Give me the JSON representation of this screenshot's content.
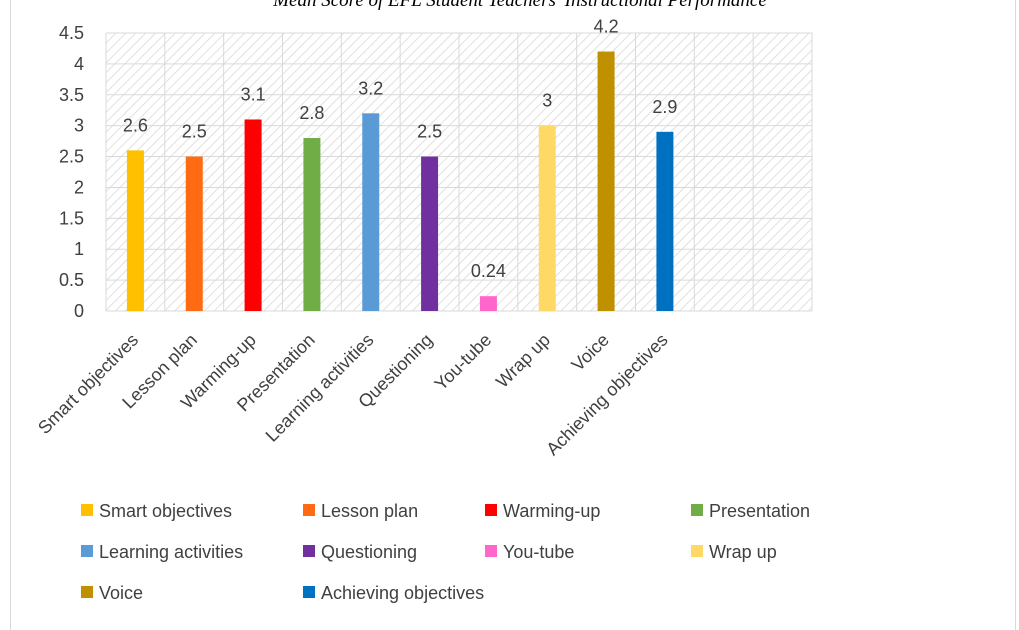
{
  "chart_data": {
    "type": "bar",
    "title": "Mean Score of EFL Student Teachers' Instructional Performance",
    "xlabel": "",
    "ylabel": "",
    "ylim": [
      0,
      4.5
    ],
    "yticks": [
      "0",
      "0.5",
      "1",
      "1.5",
      "2",
      "2.5",
      "3",
      "3.5",
      "4",
      "4.5"
    ],
    "grid": true,
    "plot_background": "diagonal hatch",
    "legend_position": "bottom",
    "categories": [
      "Smart objectives",
      "Lesson plan",
      "Warming-up",
      "Presentation",
      "Learning activities",
      "Questioning",
      "You-tube",
      "Wrap up",
      "Voice",
      "Achieving objectives"
    ],
    "values": [
      2.6,
      2.5,
      3.1,
      2.8,
      3.2,
      2.5,
      0.24,
      3,
      4.2,
      2.9
    ],
    "data_labels": [
      "2.6",
      "2.5",
      "3.1",
      "2.8",
      "3.2",
      "2.5",
      "0.24",
      "3",
      "4.2",
      "2.9"
    ],
    "colors": [
      "#ffc000",
      "#ff6a13",
      "#ff0000",
      "#70ad47",
      "#5b9bd5",
      "#7030a0",
      "#ff66cc",
      "#ffd966",
      "#bf9000",
      "#0070c0"
    ],
    "legend": [
      "Smart objectives",
      "Lesson plan",
      "Warming-up",
      "Presentation",
      "Learning activities",
      "Questioning",
      "You-tube",
      "Wrap up",
      "Voice",
      "Achieving objectives"
    ]
  }
}
